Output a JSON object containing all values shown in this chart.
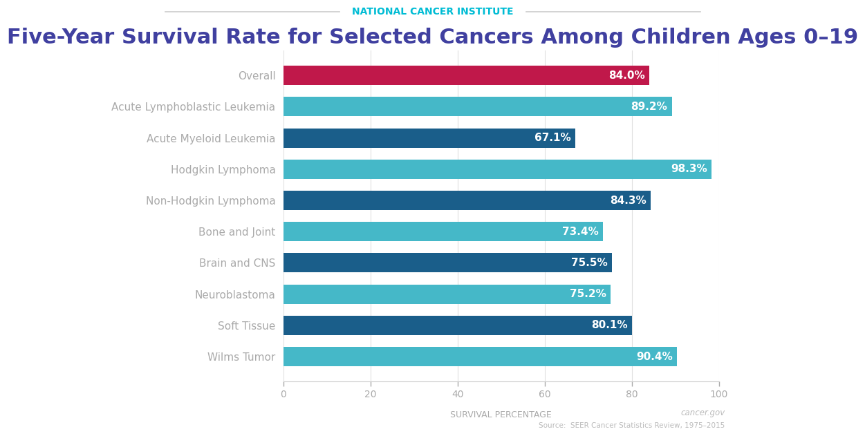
{
  "title": "Five-Year Survival Rate for Selected Cancers Among Children Ages 0–19",
  "subtitle": "NATIONAL CANCER INSTITUTE",
  "xlabel": "SURVIVAL PERCENTAGE",
  "source_line1": "cancer.gov",
  "source_line2": "Source:  SEER Cancer Statistics Review, 1975–2015",
  "categories": [
    "Overall",
    "Acute Lymphoblastic Leukemia",
    "Acute Myeloid Leukemia",
    "Hodgkin Lymphoma",
    "Non-Hodgkin Lymphoma",
    "Bone and Joint",
    "Brain and CNS",
    "Neuroblastoma",
    "Soft Tissue",
    "Wilms Tumor"
  ],
  "values": [
    84.0,
    89.2,
    67.1,
    98.3,
    84.3,
    73.4,
    75.5,
    75.2,
    80.1,
    90.4
  ],
  "bar_colors": [
    "#c0184a",
    "#45b8c8",
    "#1a5e8a",
    "#45b8c8",
    "#1a5e8a",
    "#45b8c8",
    "#1a5e8a",
    "#45b8c8",
    "#1a5e8a",
    "#45b8c8"
  ],
  "label_color": "#ffffff",
  "title_color": "#4040a0",
  "subtitle_color": "#00bcd4",
  "axis_label_color": "#aaaaaa",
  "tick_label_color": "#aaaaaa",
  "source_color": "#bbbbbb",
  "bg_color": "#ffffff",
  "xlim": [
    0,
    100
  ],
  "bar_height": 0.62,
  "value_fontsize": 11,
  "title_fontsize": 22,
  "subtitle_fontsize": 10,
  "category_fontsize": 11,
  "xlabel_fontsize": 9,
  "divider_color": "#cccccc"
}
